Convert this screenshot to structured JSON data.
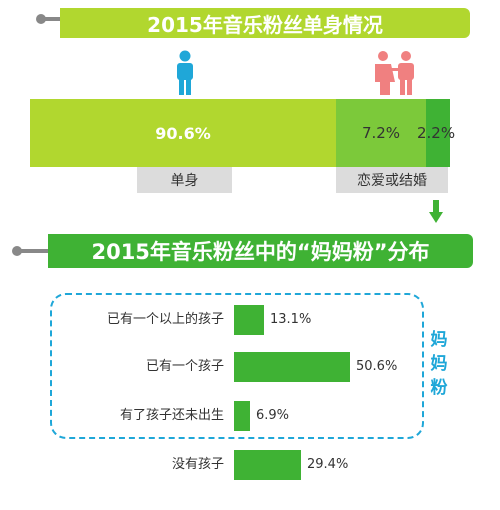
{
  "section1": {
    "title": "2015年音乐粉丝单身情况"
  },
  "section2": {
    "title": "2015年音乐粉丝中的“妈妈粉”分布"
  },
  "icons": {
    "single": "single-person-icon",
    "couple": "couple-icon",
    "arrow": "down-arrow-icon"
  },
  "colors": {
    "banner_light": "#b1d72f",
    "banner_dark": "#3fb234",
    "seg_single": "#b1d72f",
    "seg_love": "#7cc93a",
    "seg_married": "#3fb234",
    "blue": "#1fa7d8",
    "pink": "#f08080"
  },
  "mama_label": "妈妈粉",
  "chart_data": [
    {
      "type": "bar",
      "stacked": true,
      "orientation": "horizontal",
      "segments": [
        {
          "label": "90.6%",
          "value": 90.6
        },
        {
          "label": "7.2%",
          "value": 7.2
        },
        {
          "label": "2.2%",
          "value": 2.2
        }
      ],
      "categories": [
        "单身",
        "恋爱或结婚"
      ]
    },
    {
      "type": "bar",
      "orientation": "horizontal",
      "categories": [
        "已有一个以上的孩子",
        "已有一个孩子",
        "有了孩子还未出生",
        "没有孩子"
      ],
      "values": [
        13.1,
        50.6,
        6.9,
        29.4
      ],
      "value_labels": [
        "13.1%",
        "50.6%",
        "6.9%",
        "29.4%"
      ]
    }
  ]
}
